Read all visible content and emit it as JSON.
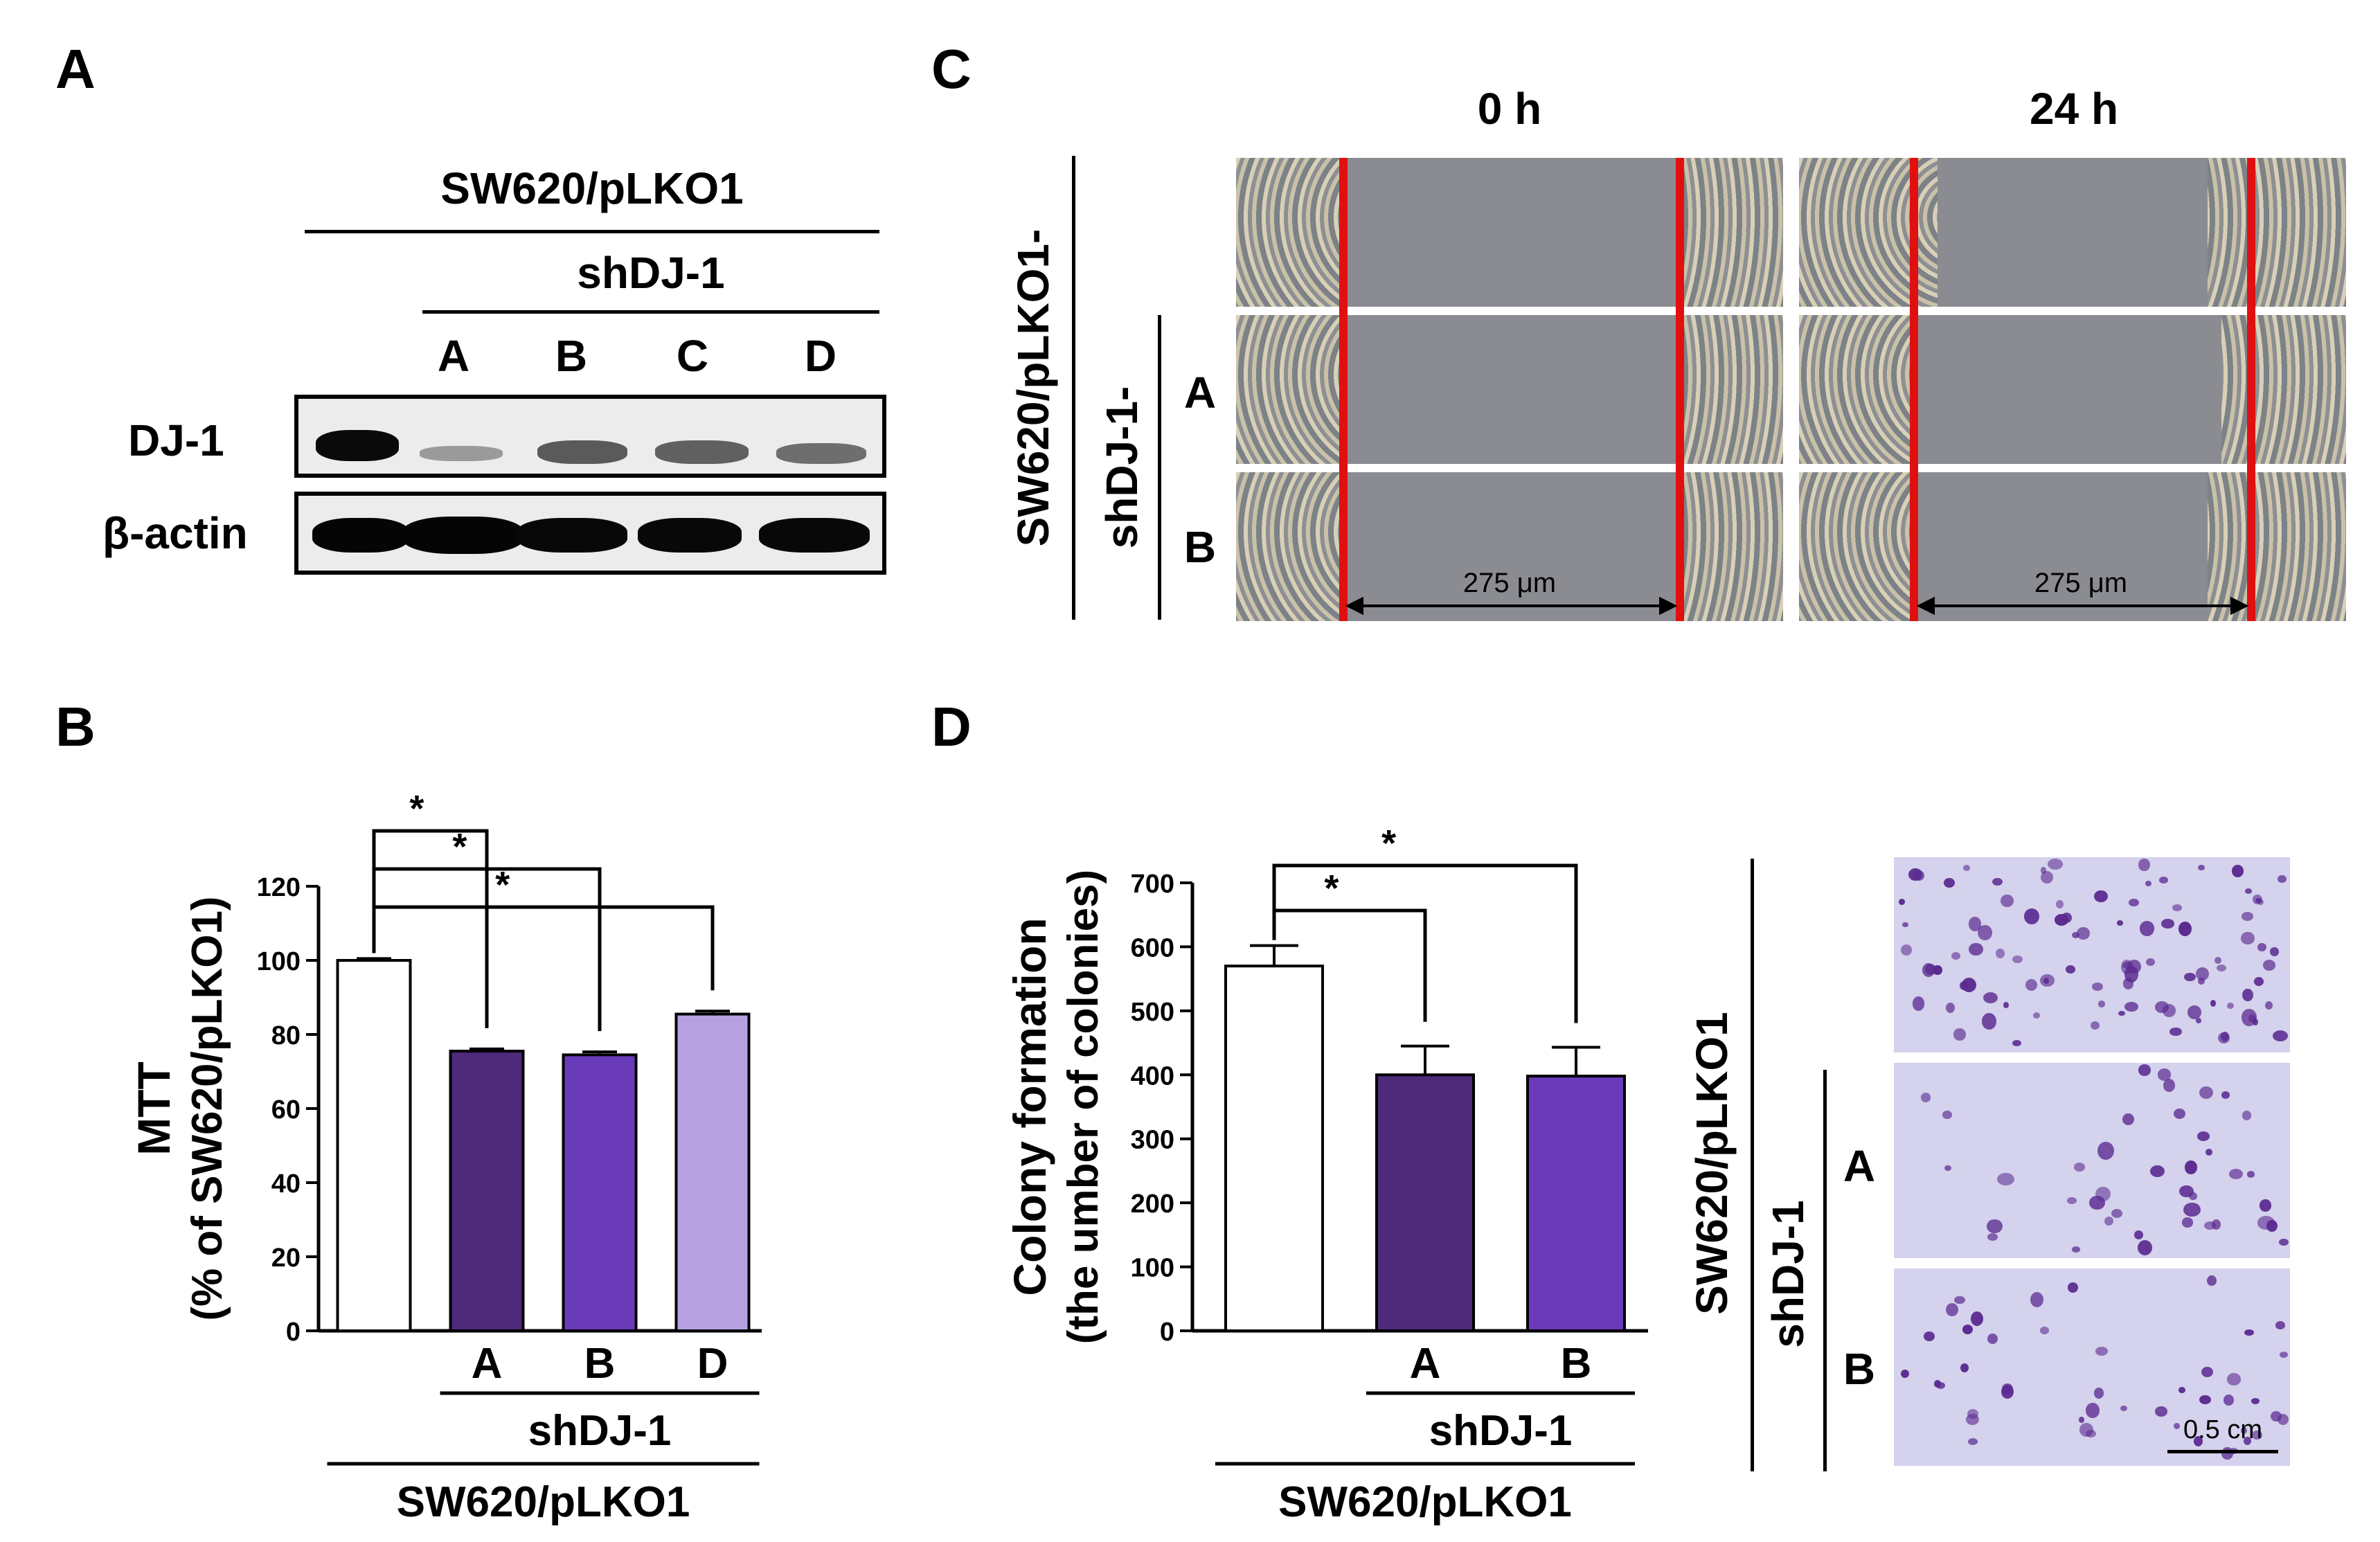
{
  "panels": {
    "a": "A",
    "b": "B",
    "c": "C",
    "d": "D"
  },
  "panel_a": {
    "group_label": "SW620/pLKO1",
    "subgroup_label": "shDJ-1",
    "lanes": [
      "A",
      "B",
      "C",
      "D"
    ],
    "row_dj1": "DJ-1",
    "row_actin": "β-actin"
  },
  "panel_c": {
    "time_0": "0 h",
    "time_24": "24 h",
    "group_label": "SW620/pLKO1-",
    "subgroup_label": "shDJ-1-",
    "row_a": "A",
    "row_b": "B",
    "scale_0": "275 μm",
    "scale_24": "275 μm"
  },
  "panel_d": {
    "group_label": "SW620/pLKO1",
    "subgroup_label": "shDJ-1",
    "row_a": "A",
    "row_b": "B",
    "scale_bar": "0.5 cm"
  },
  "chart_data": [
    {
      "type": "bar",
      "panel": "B",
      "categories": [
        "",
        "A",
        "B",
        "D"
      ],
      "values": [
        100,
        75.5,
        74.5,
        85.5
      ],
      "errors": [
        0.5,
        0.6,
        0.8,
        0.8
      ],
      "colors": [
        "#ffffff",
        "#4e2a7a",
        "#6a3bb8",
        "#b5a1e0"
      ],
      "ylabel_1": "MTT",
      "ylabel_2": "(% of SW620/pLKO1)",
      "ylim": [
        0,
        120
      ],
      "yticks": [
        0,
        20,
        40,
        60,
        80,
        100,
        120
      ],
      "subgroup_label": "shDJ-1",
      "group_label": "SW620/pLKO1",
      "significance": [
        {
          "from": 0,
          "to": 1,
          "label": "*"
        },
        {
          "from": 0,
          "to": 2,
          "label": "*"
        },
        {
          "from": 0,
          "to": 3,
          "label": "*"
        }
      ]
    },
    {
      "type": "bar",
      "panel": "D",
      "categories": [
        "",
        "A",
        "B"
      ],
      "values": [
        570,
        400,
        398
      ],
      "errors": [
        32,
        45,
        45
      ],
      "colors": [
        "#ffffff",
        "#4e2a7a",
        "#6a3bb8"
      ],
      "ylabel_1": "Colony  formation",
      "ylabel_2": "(the umber of colonies)",
      "ylim": [
        0,
        700
      ],
      "yticks": [
        0,
        100,
        200,
        300,
        400,
        500,
        600,
        700
      ],
      "subgroup_label": "shDJ-1",
      "group_label": "SW620/pLKO1",
      "significance": [
        {
          "from": 0,
          "to": 1,
          "label": "*"
        },
        {
          "from": 0,
          "to": 2,
          "label": "*"
        }
      ]
    }
  ]
}
